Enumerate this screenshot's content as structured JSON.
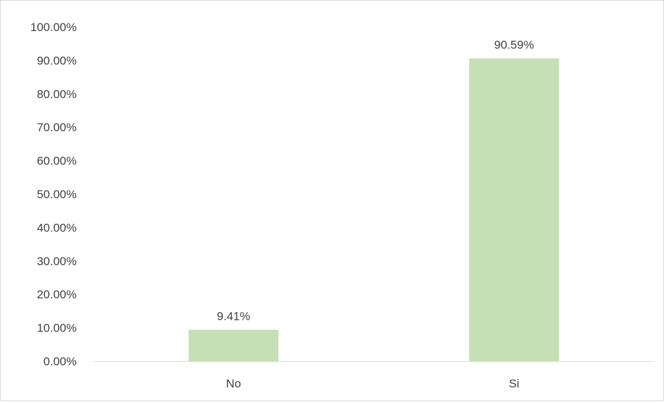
{
  "chart_data": {
    "type": "bar",
    "categories": [
      "No",
      "Si"
    ],
    "values": [
      9.41,
      90.59
    ],
    "data_labels": [
      "9.41%",
      "90.59%"
    ],
    "title": "",
    "xlabel": "",
    "ylabel": "",
    "ylim": [
      0,
      100
    ],
    "yticks": [
      0,
      10,
      20,
      30,
      40,
      50,
      60,
      70,
      80,
      90,
      100
    ],
    "ytick_labels": [
      "0.00%",
      "10.00%",
      "20.00%",
      "30.00%",
      "40.00%",
      "50.00%",
      "60.00%",
      "70.00%",
      "80.00%",
      "90.00%",
      "100.00%"
    ],
    "grid": false,
    "legend": "none",
    "bar_color": "#c5e0b4",
    "axis_color": "#d9d9d9",
    "text_color": "#404040"
  }
}
